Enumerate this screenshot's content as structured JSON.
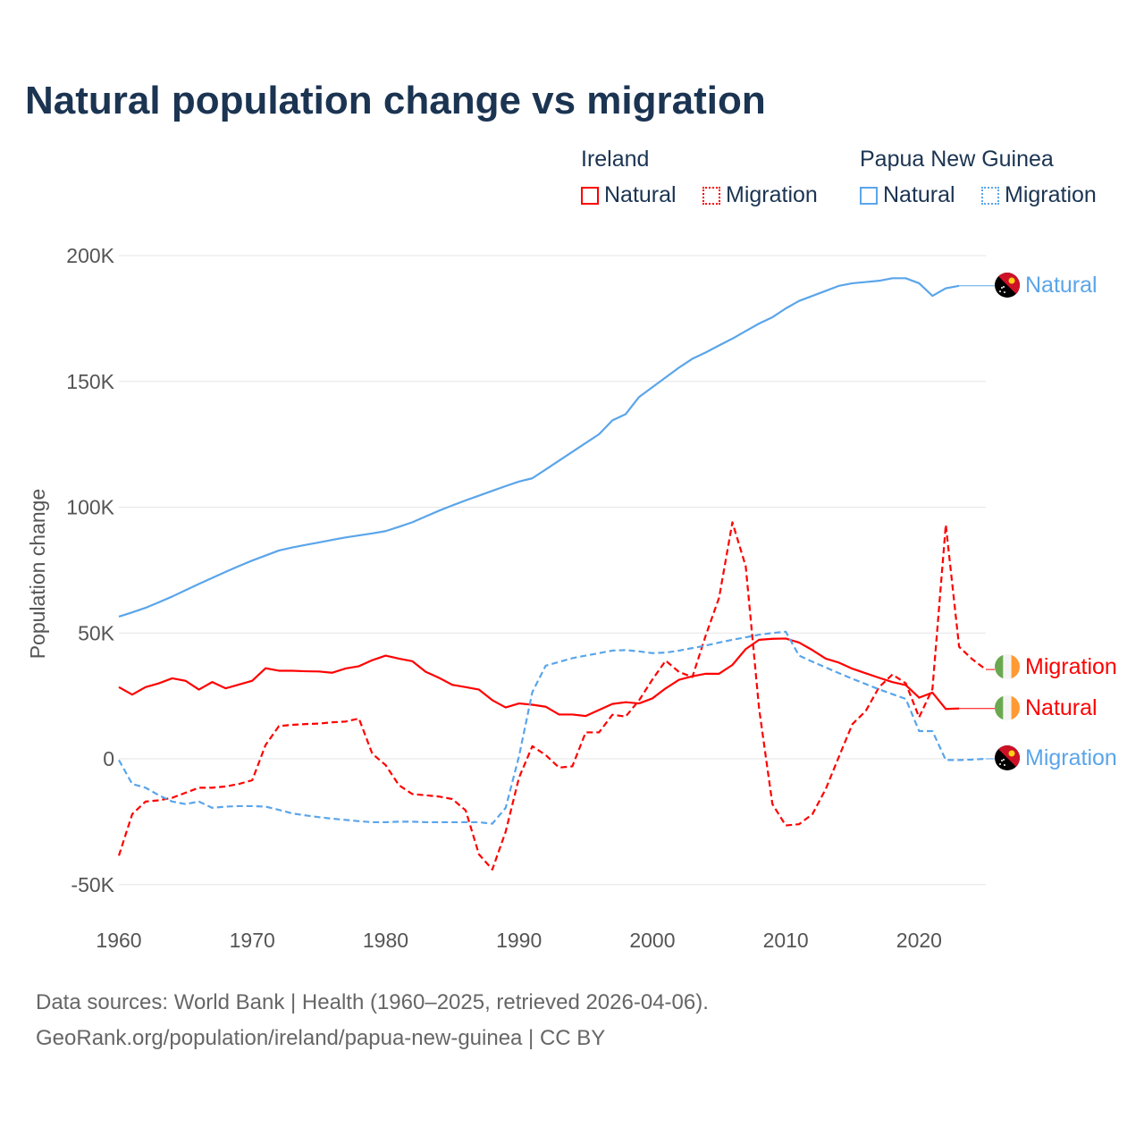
{
  "title": "Natural population change vs migration",
  "legend": {
    "groups": [
      {
        "name": "Ireland",
        "items": [
          "Natural",
          "Migration"
        ],
        "color": "#ff0000"
      },
      {
        "name": "Papua New Guinea",
        "items": [
          "Natural",
          "Migration"
        ],
        "color": "#5aa5ea"
      }
    ]
  },
  "footer": {
    "line1": "Data sources: World Bank | Health (1960–2025, retrieved 2026-04-06).",
    "line2": "GeoRank.org/population/ireland/papua-new-guinea | CC BY"
  },
  "chart_data": {
    "type": "line",
    "title": "Natural population change vs migration",
    "xlabel": "",
    "ylabel": "Population change",
    "xlim": [
      1960,
      2025
    ],
    "ylim": [
      -50000,
      200000
    ],
    "x_ticks": [
      "1960",
      "1970",
      "1980",
      "1990",
      "2000",
      "2010",
      "2020"
    ],
    "y_ticks": [
      {
        "v": -50000,
        "label": "-50K"
      },
      {
        "v": 0,
        "label": "0"
      },
      {
        "v": 50000,
        "label": "50K"
      },
      {
        "v": 100000,
        "label": "100K"
      },
      {
        "v": 150000,
        "label": "150K"
      },
      {
        "v": 200000,
        "label": "200K"
      }
    ],
    "grid": true,
    "start_year": 1960,
    "series": [
      {
        "name": "Ireland Natural",
        "country": "Ireland",
        "kind": "Natural",
        "color": "#ff0000",
        "dashed": false,
        "end_label": "Natural",
        "flag": "ireland",
        "values": [
          28.5,
          25.5,
          28.5,
          30,
          32,
          31,
          27.5,
          30.5,
          28,
          29.5,
          31,
          36,
          35,
          35,
          34.8,
          34.7,
          34.2,
          35.9,
          36.8,
          39.2,
          41,
          39.8,
          38.8,
          34.6,
          32.2,
          29.4,
          28.5,
          27.5,
          23.3,
          20.4,
          22,
          21.5,
          20.7,
          17.6,
          17.6,
          17,
          19.4,
          21.8,
          22.5,
          22,
          24,
          28,
          31.4,
          32.8,
          33.8,
          33.8,
          37.3,
          43.6,
          47.3,
          47.7,
          47.8,
          46.2,
          43.2,
          39.8,
          38.2,
          35.8,
          34,
          32.2,
          30.5,
          29.3,
          24.3,
          26.3,
          19.8,
          20
        ]
      },
      {
        "name": "Ireland Migration",
        "country": "Ireland",
        "kind": "Migration",
        "color": "#ff0000",
        "dashed": true,
        "end_label": "Migration",
        "flag": "ireland",
        "values": [
          -38.5,
          -22,
          -17,
          -16.5,
          -15.5,
          -13.5,
          -11.5,
          -11.5,
          -11,
          -10,
          -8.5,
          5.5,
          13,
          13.5,
          13.8,
          14,
          14.5,
          14.8,
          16,
          2,
          -2.5,
          -10.5,
          -14,
          -14.5,
          -15,
          -16,
          -20.5,
          -38,
          -44,
          -29,
          -7.5,
          5,
          1.5,
          -3.5,
          -3,
          10.5,
          10.5,
          17.5,
          16.8,
          23.2,
          31.5,
          39,
          34.5,
          32.5,
          49,
          64,
          94,
          76.5,
          20,
          -18,
          -26.5,
          -26,
          -22,
          -12,
          1,
          13.8,
          19,
          28.5,
          33.5,
          30,
          16.5,
          27.8,
          93,
          44.5,
          39.5,
          35.5
        ]
      },
      {
        "name": "Papua New Guinea Natural",
        "country": "Papua New Guinea",
        "kind": "Natural",
        "color": "#5aa5ea",
        "dashed": false,
        "end_label": "Natural",
        "flag": "png",
        "values": [
          56.5,
          58.2,
          60,
          62.2,
          64.5,
          67,
          69.5,
          71.9,
          74.3,
          76.6,
          78.8,
          80.8,
          82.8,
          84,
          85,
          86,
          87,
          88,
          88.8,
          89.6,
          90.5,
          92.2,
          94,
          96.3,
          98.6,
          100.7,
          102.7,
          104.6,
          106.5,
          108.4,
          110.2,
          111.5,
          115,
          118.5,
          122,
          125.5,
          129,
          134.5,
          137,
          143.8,
          147.7,
          151.6,
          155.5,
          159,
          161.5,
          164.3,
          167,
          170,
          173,
          175.5,
          179,
          182,
          184,
          186,
          188,
          189,
          189.5,
          190,
          191,
          191,
          189,
          184,
          187,
          188
        ]
      },
      {
        "name": "Papua New Guinea Migration",
        "country": "Papua New Guinea",
        "kind": "Migration",
        "color": "#5aa5ea",
        "dashed": true,
        "end_label": "Migration",
        "flag": "png",
        "values": [
          -0.5,
          -10,
          -11.5,
          -14.5,
          -17,
          -18,
          -17,
          -19.5,
          -19,
          -18.8,
          -18.8,
          -19,
          -20.3,
          -21.7,
          -22.5,
          -23.2,
          -23.8,
          -24.3,
          -24.8,
          -25.2,
          -25.2,
          -25,
          -25,
          -25.2,
          -25.2,
          -25.2,
          -25.2,
          -25.2,
          -25.8,
          -19.5,
          1,
          26.5,
          37,
          38.5,
          40,
          41,
          42,
          43,
          43.2,
          42.7,
          42,
          42.2,
          43,
          44,
          45,
          46.2,
          47.3,
          48.3,
          49.3,
          50,
          50.5,
          41,
          38.6,
          36.3,
          34,
          31.8,
          29.7,
          27.6,
          25.7,
          23.8,
          11,
          11,
          -0.5,
          -0.5,
          -0.3,
          0
        ]
      }
    ],
    "value_unit_multiplier": 1000
  }
}
